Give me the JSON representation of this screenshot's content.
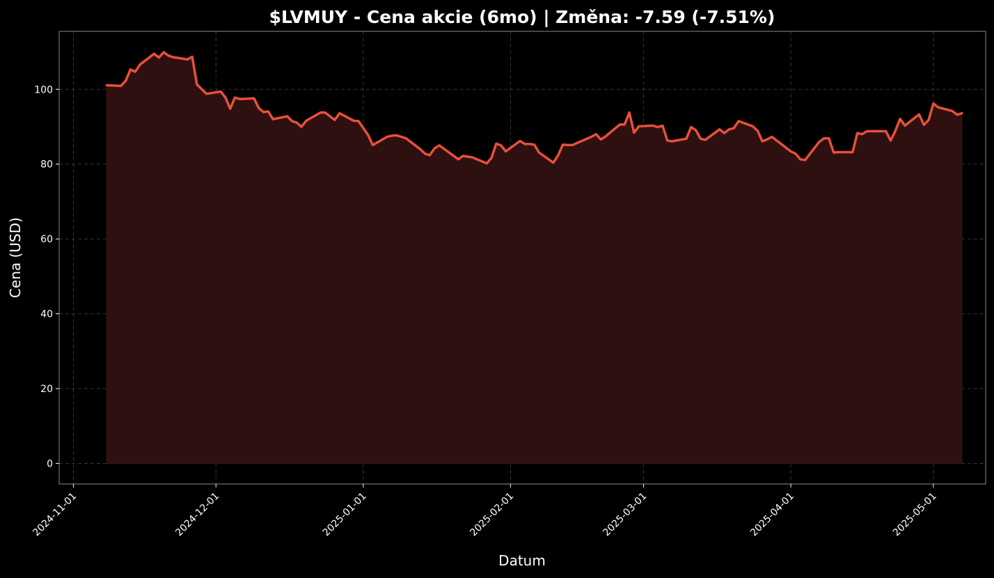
{
  "chart_data": {
    "type": "area",
    "title": "$LVMUY - Cena akcie (6mo) | Změna: -7.59 (-7.51%)",
    "xlabel": "Datum",
    "ylabel": "Cena (USD)",
    "ylim": [
      -5.5,
      115.5
    ],
    "xlim": [
      "2024-10-29",
      "2025-05-12"
    ],
    "grid": true,
    "line_color": "#e8503a",
    "fill_color": "#2e1010",
    "background": "#000000",
    "y_ticks": [
      0,
      20,
      40,
      60,
      80,
      100
    ],
    "x_ticks": [
      {
        "date": "2024-11-01",
        "label": "2024-11-01"
      },
      {
        "date": "2024-12-01",
        "label": "2024-12-01"
      },
      {
        "date": "2025-01-01",
        "label": "2025-01-01"
      },
      {
        "date": "2025-02-01",
        "label": "2025-02-01"
      },
      {
        "date": "2025-03-01",
        "label": "2025-03-01"
      },
      {
        "date": "2025-04-01",
        "label": "2025-04-01"
      },
      {
        "date": "2025-05-01",
        "label": "2025-05-01"
      }
    ],
    "series": [
      {
        "x": [
          "2024-11-08",
          "2024-11-11",
          "2024-11-12",
          "2024-11-13",
          "2024-11-14",
          "2024-11-15",
          "2024-11-18",
          "2024-11-19",
          "2024-11-20",
          "2024-11-21",
          "2024-11-22",
          "2024-11-25",
          "2024-11-26",
          "2024-11-27",
          "2024-11-29",
          "2024-12-02",
          "2024-12-03",
          "2024-12-04",
          "2024-12-05",
          "2024-12-06",
          "2024-12-09",
          "2024-12-10",
          "2024-12-11",
          "2024-12-12",
          "2024-12-13",
          "2024-12-16",
          "2024-12-17",
          "2024-12-18",
          "2024-12-19",
          "2024-12-20",
          "2024-12-23",
          "2024-12-24",
          "2024-12-26",
          "2024-12-27",
          "2024-12-30",
          "2024-12-31",
          "2025-01-02",
          "2025-01-03",
          "2025-01-06",
          "2025-01-07",
          "2025-01-08",
          "2025-01-10",
          "2025-01-13",
          "2025-01-14",
          "2025-01-15",
          "2025-01-16",
          "2025-01-17",
          "2025-01-21",
          "2025-01-22",
          "2025-01-23",
          "2025-01-24",
          "2025-01-27",
          "2025-01-28",
          "2025-01-29",
          "2025-01-30",
          "2025-01-31",
          "2025-02-03",
          "2025-02-04",
          "2025-02-05",
          "2025-02-06",
          "2025-02-07",
          "2025-02-10",
          "2025-02-11",
          "2025-02-12",
          "2025-02-13",
          "2025-02-14",
          "2025-02-18",
          "2025-02-19",
          "2025-02-20",
          "2025-02-21",
          "2025-02-24",
          "2025-02-25",
          "2025-02-26",
          "2025-02-27",
          "2025-02-28",
          "2025-03-03",
          "2025-03-04",
          "2025-03-05",
          "2025-03-06",
          "2025-03-07",
          "2025-03-10",
          "2025-03-11",
          "2025-03-12",
          "2025-03-13",
          "2025-03-14",
          "2025-03-17",
          "2025-03-18",
          "2025-03-19",
          "2025-03-20",
          "2025-03-21",
          "2025-03-24",
          "2025-03-25",
          "2025-03-26",
          "2025-03-27",
          "2025-03-28",
          "2025-03-31",
          "2025-04-01",
          "2025-04-02",
          "2025-04-03",
          "2025-04-04",
          "2025-04-07",
          "2025-04-08",
          "2025-04-09",
          "2025-04-10",
          "2025-04-11",
          "2025-04-14",
          "2025-04-15",
          "2025-04-16",
          "2025-04-17",
          "2025-04-21",
          "2025-04-22",
          "2025-04-23",
          "2025-04-24",
          "2025-04-25",
          "2025-04-28",
          "2025-04-29",
          "2025-04-30",
          "2025-05-01",
          "2025-05-02",
          "2025-05-05",
          "2025-05-06",
          "2025-05-07"
        ],
        "y": [
          101.1,
          100.9,
          102.3,
          105.3,
          104.7,
          106.6,
          109.5,
          108.5,
          109.9,
          109.0,
          108.6,
          108.0,
          108.7,
          101.3,
          98.8,
          99.4,
          97.8,
          94.8,
          97.8,
          97.4,
          97.6,
          95.0,
          93.9,
          94.1,
          92.0,
          92.8,
          91.5,
          91.1,
          90.0,
          91.6,
          93.8,
          93.8,
          91.8,
          93.6,
          91.6,
          91.5,
          87.8,
          85.1,
          87.3,
          87.6,
          87.7,
          86.9,
          84.0,
          82.8,
          82.4,
          84.2,
          85.0,
          81.3,
          82.2,
          82.0,
          81.8,
          80.2,
          81.7,
          85.5,
          85.0,
          83.4,
          86.2,
          85.4,
          85.4,
          85.2,
          83.1,
          80.4,
          82.3,
          85.2,
          85.1,
          85.1,
          87.3,
          88.0,
          86.6,
          87.4,
          90.6,
          90.6,
          93.8,
          88.4,
          90.1,
          90.3,
          89.9,
          90.3,
          86.3,
          86.1,
          86.8,
          89.9,
          89.1,
          86.8,
          86.5,
          89.3,
          88.3,
          89.3,
          89.6,
          91.5,
          90.1,
          88.9,
          86.1,
          86.6,
          87.3,
          84.4,
          83.4,
          82.8,
          81.3,
          81.1,
          86.0,
          86.9,
          86.9,
          83.1,
          83.2,
          83.2,
          88.3,
          88.0,
          88.8,
          88.8,
          86.3,
          88.9,
          92.1,
          90.3,
          93.3,
          90.5,
          91.8,
          96.2,
          95.2,
          94.2,
          93.2,
          93.6
        ]
      }
    ]
  }
}
